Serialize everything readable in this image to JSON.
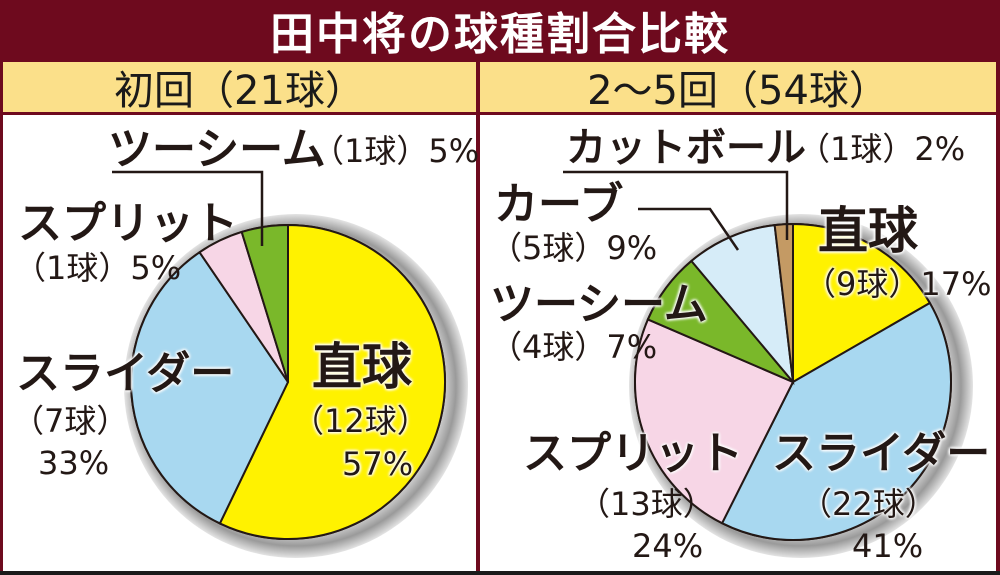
{
  "title": "田中将の球種割合比較",
  "colors": {
    "frame": "#6e0a1e",
    "subheader": "#fbe08a",
    "fastball": "#fff200",
    "slider": "#a8d8f0",
    "split": "#f7d6e6",
    "twoseam": "#7ab82a",
    "curve": "#d6ecf8",
    "cutball": "#c49a64"
  },
  "panels": [
    {
      "header": "初回（21球）",
      "labels": {
        "twoseam_name": "ツーシーム",
        "twoseam_val": "（1球）5%",
        "split_name": "スプリット",
        "split_val": "（1球）5%",
        "slider_name": "スライダー",
        "slider_count": "（7球）",
        "slider_pct": "33%",
        "fastball_name": "直球",
        "fastball_count": "（12球）",
        "fastball_pct": "57%"
      }
    },
    {
      "header": "2〜5回（54球）",
      "labels": {
        "cutball_name": "カットボール",
        "cutball_val": "（1球）2%",
        "curve_name": "カーブ",
        "curve_val": "（5球）9%",
        "twoseam_name": "ツーシーム",
        "twoseam_val": "（4球）7%",
        "fastball_name": "直球",
        "fastball_val": "（9球）17%",
        "split_name": "スプリット",
        "split_count": "（13球）",
        "split_pct": "24%",
        "slider_name": "スライダー",
        "slider_count": "（22球）",
        "slider_pct": "41%"
      }
    }
  ],
  "chart_data": [
    {
      "type": "pie",
      "title": "初回（21球）",
      "categories": [
        "直球",
        "スライダー",
        "スプリット",
        "ツーシーム"
      ],
      "counts": [
        12,
        7,
        1,
        1
      ],
      "values": [
        57,
        33,
        5,
        5
      ],
      "unit": "%",
      "total": 21
    },
    {
      "type": "pie",
      "title": "2〜5回（54球）",
      "categories": [
        "直球",
        "スライダー",
        "スプリット",
        "ツーシーム",
        "カーブ",
        "カットボール"
      ],
      "counts": [
        9,
        22,
        13,
        4,
        5,
        1
      ],
      "values": [
        17,
        41,
        24,
        7,
        9,
        2
      ],
      "unit": "%",
      "total": 54
    }
  ]
}
